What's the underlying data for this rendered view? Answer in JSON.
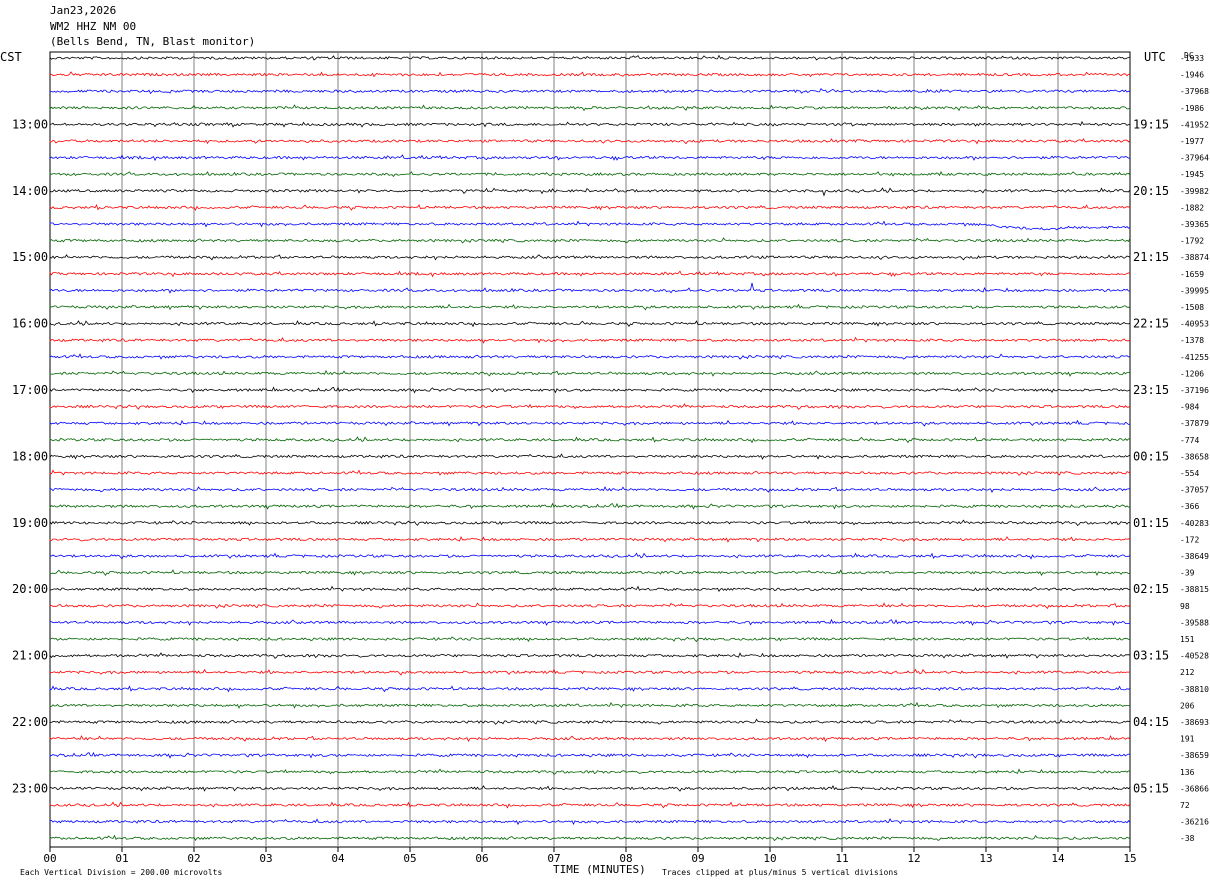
{
  "header": {
    "date": "Jan23,2026",
    "station": "WM2 HHZ NM 00",
    "location": "(Bells Bend, TN, Blast monitor)"
  },
  "left_tz": "CST",
  "right_tz": "UTC",
  "dc_label": "DC",
  "footer": {
    "scale_note": "Each Vertical Division =  200.00 microvolts",
    "xlabel": "TIME (MINUTES)",
    "clip_note": "Traces clipped at plus/minus 5 vertical divisions"
  },
  "colors": {
    "trace": [
      "#000000",
      "#ff0000",
      "#0000ff",
      "#006400"
    ],
    "grid": "#808080"
  },
  "chart_data": {
    "type": "line",
    "title": "WM2 HHZ NM 00 (Bells Bend, TN, Blast monitor)",
    "xlabel": "TIME (MINUTES)",
    "xlim": [
      0,
      15
    ],
    "x_ticks": [
      "00",
      "01",
      "02",
      "03",
      "04",
      "05",
      "06",
      "07",
      "08",
      "09",
      "10",
      "11",
      "12",
      "13",
      "14",
      "15"
    ],
    "left_hour_labels": [
      "13:00",
      "14:00",
      "15:00",
      "16:00",
      "17:00",
      "18:00",
      "19:00",
      "20:00",
      "21:00",
      "22:00",
      "23:00"
    ],
    "right_hour_labels": [
      "19:15",
      "20:15",
      "21:15",
      "22:15",
      "23:15",
      "00:15",
      "01:15",
      "02:15",
      "03:15",
      "04:15",
      "05:15"
    ],
    "trace_count": 48,
    "traces_per_hour": 4,
    "minutes_per_trace": 15,
    "dc_offsets": [
      "-1933",
      "-1946",
      "-37968",
      "-1986",
      "-41952",
      "-1977",
      "-37964",
      "-1945",
      "-39982",
      "-1882",
      "-39365",
      "-1792",
      "-38874",
      "-1659",
      "-39995",
      "-1508",
      "-40953",
      "-1378",
      "-41255",
      "-1206",
      "-37196",
      "-984",
      "-37879",
      "-774",
      "-38658",
      "-554",
      "-37057",
      "-366",
      "-40283",
      "-172",
      "-38649",
      "-39",
      "-38815",
      "98",
      "-39588",
      "151",
      "-40528",
      "212",
      "-38810",
      "206",
      "-38693",
      "191",
      "-38659",
      "136",
      "-36866",
      "72",
      "-36216",
      "-38"
    ],
    "events": [
      {
        "trace": 8,
        "minute": 10.75,
        "amplitude": "small spike"
      },
      {
        "trace": 10,
        "minute": 13.5,
        "amplitude": "long-period drift"
      },
      {
        "trace": 12,
        "minute": 9.75,
        "amplitude": "spike"
      },
      {
        "trace": 14,
        "minute": 9.75,
        "amplitude": "large spike"
      }
    ]
  }
}
